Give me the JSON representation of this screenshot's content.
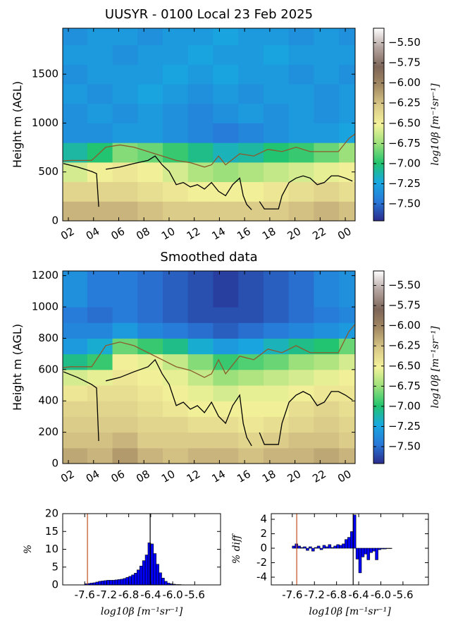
{
  "chart_data": [
    {
      "type": "heatmap",
      "title": "UUSYR - 0100 Local 23 Feb 2025",
      "ylabel": "Height m (AGL)",
      "xlim": [
        1.55,
        24.78
      ],
      "xticks": [
        {
          "value": 2,
          "label": "02"
        },
        {
          "value": 4,
          "label": "04"
        },
        {
          "value": 6,
          "label": "06"
        },
        {
          "value": 8,
          "label": "08"
        },
        10,
        12,
        14,
        16,
        18,
        20,
        22,
        {
          "value": 24,
          "label": "00"
        }
      ],
      "ylim": [
        0,
        1970
      ],
      "yticks": [
        0,
        500,
        1000,
        1500
      ],
      "x_edges": [
        1.55,
        3.5,
        5.5,
        7.5,
        9.5,
        11.5,
        13.5,
        15.5,
        17.5,
        19.5,
        21.5,
        23.5,
        24.78
      ],
      "y_edges": [
        0,
        200,
        400,
        600,
        800,
        1000,
        1200,
        1400,
        1600,
        1800,
        2000
      ],
      "z": [
        [
          -6.2,
          -6.2,
          -6.2,
          -6.25,
          -6.3,
          -6.3,
          -6.3,
          -6.3,
          -6.3,
          -6.25,
          -6.2,
          -6.25
        ],
        [
          -6.35,
          -6.35,
          -6.35,
          -6.4,
          -6.45,
          -6.5,
          -6.5,
          -6.5,
          -6.45,
          -6.4,
          -6.35,
          -6.4
        ],
        [
          -6.6,
          -6.5,
          -6.45,
          -6.5,
          -6.6,
          -6.7,
          -6.75,
          -6.7,
          -6.65,
          -6.6,
          -6.55,
          -6.5
        ],
        [
          -7.1,
          -7.0,
          -6.8,
          -6.85,
          -6.95,
          -7.05,
          -7.15,
          -7.1,
          -7.0,
          -6.95,
          -6.85,
          -6.75
        ],
        [
          -7.35,
          -7.35,
          -7.3,
          -7.3,
          -7.35,
          -7.4,
          -7.45,
          -7.4,
          -7.35,
          -7.3,
          -7.3,
          -7.25
        ],
        [
          -7.35,
          -7.3,
          -7.35,
          -7.3,
          -7.35,
          -7.4,
          -7.35,
          -7.3,
          -7.35,
          -7.3,
          -7.35,
          -7.3
        ],
        [
          -7.3,
          -7.35,
          -7.3,
          -7.25,
          -7.3,
          -7.35,
          -7.3,
          -7.35,
          -7.3,
          -7.3,
          -7.35,
          -7.3
        ],
        [
          -7.35,
          -7.3,
          -7.3,
          -7.3,
          -7.25,
          -7.3,
          -7.25,
          -7.3,
          -7.3,
          -7.35,
          -7.3,
          -7.35
        ],
        [
          -7.3,
          -7.3,
          -7.35,
          -7.3,
          -7.3,
          -7.25,
          -7.3,
          -7.3,
          -7.25,
          -7.3,
          -7.3,
          -7.3
        ],
        [
          -7.35,
          -7.3,
          -7.3,
          -7.35,
          -7.3,
          -7.3,
          -7.25,
          -7.3,
          -7.3,
          -7.35,
          -7.3,
          -7.35
        ]
      ],
      "colormap": [
        "#2a2c8c",
        "#2878d8",
        "#18a8e0",
        "#22c46e",
        "#9be07a",
        "#f4f29a",
        "#d9c887",
        "#a48a63",
        "#7d6558",
        "#b4a4a0",
        "#ffffff"
      ],
      "clim": [
        -7.71,
        -5.32
      ],
      "colorbar_label": "log10β [m⁻¹sr⁻¹]",
      "colorbar_ticks": [
        {
          "value": -5.5,
          "label": "−5.50"
        },
        {
          "value": -5.75,
          "label": "−5.75"
        },
        {
          "value": -6.0,
          "label": "−6.00"
        },
        {
          "value": -6.25,
          "label": "−6.25"
        },
        {
          "value": -6.5,
          "label": "−6.50"
        },
        {
          "value": -6.75,
          "label": "−6.75"
        },
        {
          "value": -7.0,
          "label": "−7.00"
        },
        {
          "value": -7.25,
          "label": "−7.25"
        },
        {
          "value": -7.5,
          "label": "−7.50"
        }
      ],
      "series": [
        {
          "color": "#000000",
          "x": [
            1.61,
            2.73,
            3.85,
            4.24,
            4.41,
            4.7,
            4.97,
            6.09,
            7.21,
            8.33,
            8.89,
            9.45,
            10.01,
            10.57,
            11.13,
            11.69,
            12.25,
            12.81,
            13.37,
            13.93,
            14.49,
            15.05,
            15.61,
            15.89,
            16.17,
            16.56,
            16.9,
            17.18,
            17.57,
            18.41,
            18.69,
            18.97,
            19.53,
            20.09,
            20.65,
            21.21,
            21.77,
            22.33,
            22.89,
            23.45,
            24.01,
            24.57
          ],
          "values": [
            586,
            550,
            505,
            483,
            144,
            null,
            528,
            550,
            586,
            618,
            663,
            573,
            505,
            370,
            392,
            347,
            370,
            325,
            392,
            302,
            257,
            370,
            437,
            257,
            167,
            113,
            null,
            198,
            122,
            122,
            122,
            257,
            392,
            437,
            460,
            437,
            370,
            392,
            460,
            460,
            437,
            406
          ]
        },
        {
          "color": "#8b5a2b",
          "x": [
            1.6,
            2.17,
            3.85,
            4.97,
            6.09,
            7.21,
            8.33,
            9.45,
            10.57,
            11.69,
            12.81,
            13.37,
            13.93,
            14.49,
            15.61,
            16.73,
            17.85,
            18.97,
            20.09,
            21.21,
            22.33,
            23.45,
            24.29,
            24.78
          ],
          "values": [
            613,
            618,
            618,
            753,
            776,
            753,
            708,
            663,
            618,
            595,
            550,
            573,
            663,
            573,
            686,
            663,
            731,
            708,
            753,
            708,
            708,
            708,
            843,
            889
          ]
        }
      ]
    },
    {
      "type": "heatmap",
      "title": "Smoothed data",
      "ylabel": "Height m (AGL)",
      "xlim": [
        1.55,
        24.78
      ],
      "xticks": [
        {
          "value": 2,
          "label": "02"
        },
        {
          "value": 4,
          "label": "04"
        },
        {
          "value": 6,
          "label": "06"
        },
        {
          "value": 8,
          "label": "08"
        },
        10,
        12,
        14,
        16,
        18,
        20,
        22,
        {
          "value": 24,
          "label": "00"
        }
      ],
      "ylim": [
        0,
        1230
      ],
      "yticks": [
        0,
        200,
        400,
        600,
        800,
        1000,
        1200
      ],
      "x_edges": [
        1.55,
        3.5,
        5.5,
        7.5,
        9.5,
        11.5,
        13.5,
        15.5,
        17.5,
        19.5,
        21.5,
        23.5,
        24.78
      ],
      "y_edges": [
        0,
        100,
        200,
        300,
        400,
        500,
        600,
        700,
        800,
        900,
        1000,
        1230
      ],
      "z": [
        [
          -6.15,
          -6.2,
          -6.1,
          -6.2,
          -6.25,
          -6.2,
          -6.2,
          -6.25,
          -6.2,
          -6.2,
          -6.15,
          -6.2
        ],
        [
          -6.25,
          -6.25,
          -6.2,
          -6.3,
          -6.3,
          -6.3,
          -6.3,
          -6.35,
          -6.3,
          -6.25,
          -6.25,
          -6.3
        ],
        [
          -6.3,
          -6.3,
          -6.3,
          -6.35,
          -6.35,
          -6.4,
          -6.4,
          -6.45,
          -6.4,
          -6.35,
          -6.3,
          -6.35
        ],
        [
          -6.35,
          -6.35,
          -6.35,
          -6.4,
          -6.45,
          -6.5,
          -6.5,
          -6.5,
          -6.5,
          -6.4,
          -6.35,
          -6.4
        ],
        [
          -6.45,
          -6.4,
          -6.4,
          -6.45,
          -6.5,
          -6.55,
          -6.6,
          -6.55,
          -6.55,
          -6.5,
          -6.45,
          -6.45
        ],
        [
          -6.6,
          -6.55,
          -6.45,
          -6.5,
          -6.55,
          -6.65,
          -6.75,
          -6.7,
          -6.65,
          -6.6,
          -6.55,
          -6.5
        ],
        [
          -7.05,
          -6.95,
          -6.5,
          -6.55,
          -6.65,
          -6.8,
          -6.95,
          -6.9,
          -6.85,
          -6.75,
          -6.7,
          -6.6
        ],
        [
          -7.3,
          -7.2,
          -6.85,
          -6.95,
          -7.05,
          -7.2,
          -7.3,
          -7.25,
          -7.15,
          -7.05,
          -7.0,
          -6.85
        ],
        [
          -7.4,
          -7.4,
          -7.3,
          -7.4,
          -7.45,
          -7.5,
          -7.55,
          -7.5,
          -7.45,
          -7.4,
          -7.35,
          -7.3
        ],
        [
          -7.45,
          -7.5,
          -7.45,
          -7.5,
          -7.55,
          -7.6,
          -7.6,
          -7.6,
          -7.55,
          -7.5,
          -7.45,
          -7.4
        ],
        [
          -7.35,
          -7.45,
          -7.45,
          -7.5,
          -7.55,
          -7.6,
          -7.65,
          -7.6,
          -7.55,
          -7.5,
          -7.4,
          -7.35
        ]
      ],
      "colormap": [
        "#2a2c8c",
        "#2878d8",
        "#18a8e0",
        "#22c46e",
        "#9be07a",
        "#f4f29a",
        "#d9c887",
        "#a48a63",
        "#7d6558",
        "#b4a4a0",
        "#ffffff"
      ],
      "clim": [
        -7.71,
        -5.32
      ],
      "colorbar_label": "log10β [m⁻¹sr⁻¹]",
      "colorbar_ticks": [
        {
          "value": -5.5,
          "label": "−5.50"
        },
        {
          "value": -5.75,
          "label": "−5.75"
        },
        {
          "value": -6.0,
          "label": "−6.00"
        },
        {
          "value": -6.25,
          "label": "−6.25"
        },
        {
          "value": -6.5,
          "label": "−6.50"
        },
        {
          "value": -6.75,
          "label": "−6.75"
        },
        {
          "value": -7.0,
          "label": "−7.00"
        },
        {
          "value": -7.25,
          "label": "−7.25"
        },
        {
          "value": -7.5,
          "label": "−7.50"
        }
      ],
      "series": [
        {
          "color": "#000000",
          "x": [
            1.61,
            2.73,
            3.85,
            4.24,
            4.41,
            4.7,
            4.97,
            6.09,
            7.21,
            8.33,
            8.89,
            9.45,
            10.01,
            10.57,
            11.13,
            11.69,
            12.25,
            12.81,
            13.37,
            13.93,
            14.49,
            15.05,
            15.61,
            15.89,
            16.17,
            16.56,
            16.9,
            17.18,
            17.57,
            18.41,
            18.69,
            18.97,
            19.53,
            20.09,
            20.65,
            21.21,
            21.77,
            22.33,
            22.89,
            23.45,
            24.01,
            24.57
          ],
          "values": [
            586,
            550,
            505,
            483,
            144,
            null,
            528,
            550,
            586,
            618,
            663,
            573,
            505,
            370,
            392,
            347,
            370,
            325,
            392,
            302,
            257,
            370,
            437,
            257,
            167,
            113,
            null,
            198,
            122,
            122,
            122,
            257,
            392,
            437,
            460,
            437,
            370,
            392,
            460,
            460,
            437,
            406
          ]
        },
        {
          "color": "#8b5a2b",
          "x": [
            1.6,
            2.17,
            3.85,
            4.97,
            6.09,
            7.21,
            8.33,
            9.45,
            10.57,
            11.69,
            12.81,
            13.37,
            13.93,
            14.49,
            15.61,
            16.73,
            17.85,
            18.97,
            20.09,
            21.21,
            22.33,
            23.45,
            24.29,
            24.78
          ],
          "values": [
            613,
            618,
            618,
            753,
            776,
            753,
            708,
            663,
            618,
            595,
            550,
            573,
            663,
            573,
            686,
            663,
            731,
            708,
            753,
            708,
            708,
            708,
            843,
            889
          ]
        }
      ]
    },
    {
      "type": "histogram",
      "xlabel": "log10β [m⁻¹sr⁻¹]",
      "ylabel": "%",
      "color": "#0000ff",
      "xlim": [
        -8.0,
        -5.13
      ],
      "xticks": [
        -7.6,
        -7.2,
        -6.8,
        -6.4,
        {
          "value": -6.0,
          "label": "-6.0"
        },
        -5.6
      ],
      "ylim": [
        0,
        20
      ],
      "yticks": [
        0,
        5,
        10,
        15,
        20
      ],
      "bins": [
        -7.65,
        -7.6,
        -7.55,
        -7.5,
        -7.45,
        -7.4,
        -7.35,
        -7.3,
        -7.25,
        -7.2,
        -7.15,
        -7.1,
        -7.05,
        -7.0,
        -6.95,
        -6.9,
        -6.85,
        -6.8,
        -6.75,
        -6.7,
        -6.65,
        -6.6,
        -6.55,
        -6.5,
        -6.45,
        -6.4,
        -6.35,
        -6.3,
        -6.25,
        -6.2,
        -6.15,
        -6.1,
        -6.05,
        -6.0,
        -5.95,
        -5.9,
        -5.85,
        -5.8,
        -5.75,
        -5.7,
        -5.65
      ],
      "values": [
        0,
        0.3,
        0.4,
        0.5,
        0.6,
        0.8,
        1.0,
        1.1,
        1.2,
        1.3,
        1.3,
        1.3,
        1.4,
        1.5,
        1.6,
        1.8,
        2.1,
        2.4,
        2.8,
        3.3,
        4.2,
        5.3,
        6.8,
        8.4,
        11.8,
        11.5,
        8.8,
        5.8,
        3.4,
        1.9,
        1.0,
        0.5,
        0.3,
        0.2,
        0.1,
        0.1,
        0.05,
        0,
        0,
        0
      ],
      "vlines": [
        {
          "value": -7.55,
          "color": "#c0501c"
        },
        {
          "value": -6.41,
          "color": "#000000"
        }
      ]
    },
    {
      "type": "histogram",
      "xlabel": "log10β [m⁻¹sr⁻¹]",
      "ylabel": "% diff",
      "color": "#0000ff",
      "xlim": [
        -7.98,
        -5.14
      ],
      "xticks": [
        -7.6,
        -7.2,
        -6.8,
        -6.4,
        {
          "value": -6.0,
          "label": "-6.0"
        },
        -5.6
      ],
      "ylim": [
        -5.07,
        4.78
      ],
      "yticks": [
        -4,
        -2,
        0,
        2,
        4
      ],
      "bins": [
        -7.65,
        -7.6,
        -7.55,
        -7.5,
        -7.45,
        -7.4,
        -7.35,
        -7.3,
        -7.25,
        -7.2,
        -7.15,
        -7.1,
        -7.05,
        -7.0,
        -6.95,
        -6.9,
        -6.85,
        -6.8,
        -6.75,
        -6.7,
        -6.65,
        -6.6,
        -6.55,
        -6.5,
        -6.45,
        -6.4,
        -6.35,
        -6.3,
        -6.25,
        -6.2,
        -6.15,
        -6.1,
        -6.05,
        -6.0,
        -5.95,
        -5.9,
        -5.85,
        -5.8,
        -5.75,
        -5.7,
        -5.65
      ],
      "values": [
        0,
        0.3,
        0.6,
        0.3,
        0.1,
        0.2,
        -0.3,
        0.2,
        -0.4,
        0.1,
        0.3,
        -0.2,
        0.4,
        0.2,
        0.5,
        0.1,
        0.3,
        0.5,
        0.4,
        0.6,
        1.2,
        1.5,
        2.3,
        4.6,
        -1.5,
        -3.4,
        -1.2,
        -0.8,
        -1.6,
        -0.6,
        -0.4,
        -1.6,
        -0.2,
        -0.1,
        -0.1,
        -0.05,
        -0.05,
        0,
        0,
        0
      ],
      "vlines": [
        {
          "value": -7.52,
          "color": "#c0501c"
        },
        {
          "value": -6.5,
          "color": "#000000"
        }
      ]
    }
  ]
}
